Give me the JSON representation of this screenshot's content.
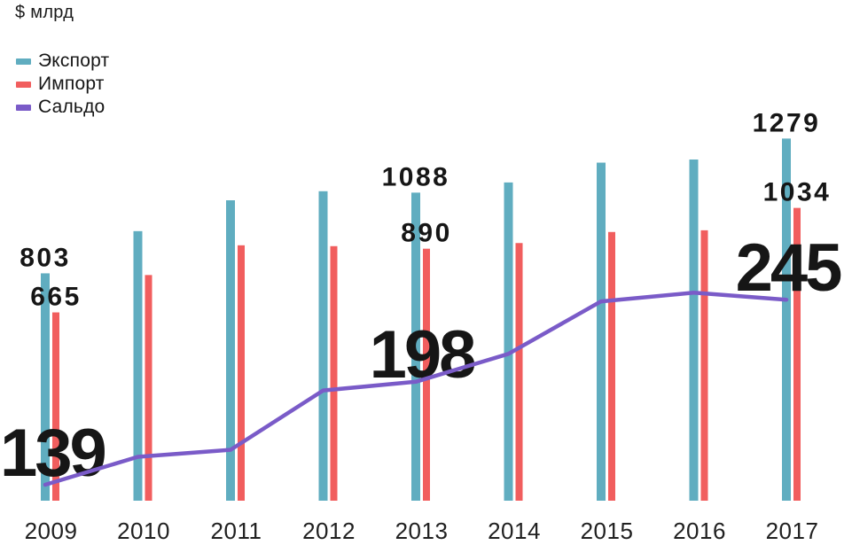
{
  "chart_data": {
    "type": "bar",
    "subtype": "grouped-bars-with-line-overlay",
    "title": "$ млрд",
    "categories": [
      "2009",
      "2010",
      "2011",
      "2012",
      "2013",
      "2014",
      "2015",
      "2016",
      "2017"
    ],
    "labeled_categories": [
      "2009",
      "2013",
      "2017"
    ],
    "series": [
      {
        "name": "Экспорт",
        "kind": "bar",
        "color": "#60ADC0",
        "values": [
          803,
          952,
          1061,
          1093,
          1088,
          1124,
          1194,
          1205,
          1279
        ],
        "shown_labels": {
          "2009": "803",
          "2013": "1088",
          "2017": "1279"
        }
      },
      {
        "name": "Импорт",
        "kind": "bar",
        "color": "#F15E5E",
        "values": [
          665,
          797,
          902,
          899,
          890,
          910,
          949,
          955,
          1034
        ],
        "shown_labels": {
          "2009": "665",
          "2013": "890",
          "2017": "1034"
        }
      },
      {
        "name": "Сальдо",
        "kind": "line",
        "color": "#7A5BC8",
        "values": [
          139,
          155,
          159,
          193,
          198,
          214,
          244,
          249,
          245
        ],
        "shown_labels": {
          "2009": "139",
          "2013": "198",
          "2017": "245"
        }
      }
    ],
    "legend_position": "top-left",
    "grid": false,
    "y_axis_visible": false,
    "x_axis_visible": true,
    "note": "line series drawn on exaggerated scale relative to bars",
    "text_color": "#1a1a1a"
  }
}
